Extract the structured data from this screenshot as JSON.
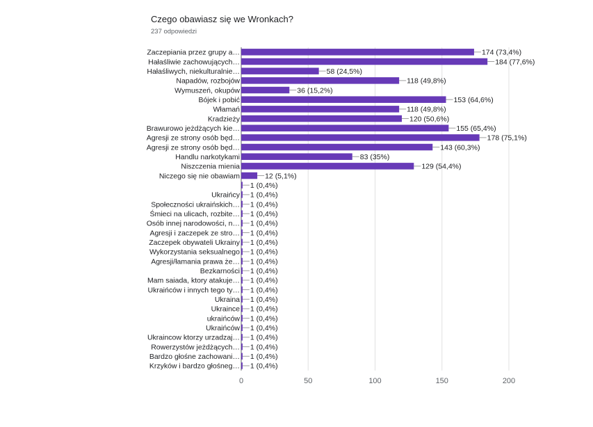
{
  "chart_data": {
    "type": "bar",
    "orientation": "horizontal",
    "title": "Czego obawiasz się we Wronkach?",
    "subtitle": "237 odpowiedzi",
    "bar_color": "#673ab7",
    "xlim": [
      0,
      200
    ],
    "xticks": [
      0,
      50,
      100,
      150,
      200
    ],
    "grid": true,
    "categories": [
      "Zaczepiania przez grupy a…",
      "Hałaśliwie zachowujących…",
      "Hałaśliwych, niekulturalnie…",
      "Napadów, rozbojów",
      "Wymuszeń, okupów",
      "Bójek i pobić",
      "Włamań",
      "Kradzieży",
      "Brawurowo jeżdżących kie…",
      "Agresji ze strony osób będ…",
      "Agresji ze strony osób będ…",
      "Handlu narkotykami",
      "Niszczenia mienia",
      "Niczego się nie obawiam",
      "",
      "Ukraińcy",
      "Społeczności ukraińskich…",
      "Śmieci na ulicach, rozbite…",
      "Osób innej narodowości, n…",
      "Agresji i zaczepek ze stro…",
      "Zaczepek obywateli Ukrainy",
      "Wykorzystania seksualnego",
      "Agresji/łamania prawa że…",
      "Bezkarności",
      "Mam saiada, ktory atakuje…",
      "Ukraińców i innych tego ty…",
      "Ukraina",
      "Ukraince",
      "ukraińców",
      "Ukraińców",
      "Ukraincow ktorzy urzadzaj…",
      "Rowerzystów jeżdżących…",
      "Bardzo głośne zachowani…",
      "Krzyków i bardzo głośneg…"
    ],
    "values": [
      174,
      184,
      58,
      118,
      36,
      153,
      118,
      120,
      155,
      178,
      143,
      83,
      129,
      12,
      1,
      1,
      1,
      1,
      1,
      1,
      1,
      1,
      1,
      1,
      1,
      1,
      1,
      1,
      1,
      1,
      1,
      1,
      1,
      1
    ],
    "value_labels": [
      "174 (73,4%)",
      "184 (77,6%)",
      "58 (24,5%)",
      "118 (49,8%)",
      "36 (15,2%)",
      "153 (64,6%)",
      "118 (49,8%)",
      "120 (50,6%)",
      "155 (65,4%)",
      "178 (75,1%)",
      "143 (60,3%)",
      "83 (35%)",
      "129 (54,4%)",
      "12 (5,1%)",
      "1 (0,4%)",
      "1 (0,4%)",
      "1 (0,4%)",
      "1 (0,4%)",
      "1 (0,4%)",
      "1 (0,4%)",
      "1 (0,4%)",
      "1 (0,4%)",
      "1 (0,4%)",
      "1 (0,4%)",
      "1 (0,4%)",
      "1 (0,4%)",
      "1 (0,4%)",
      "1 (0,4%)",
      "1 (0,4%)",
      "1 (0,4%)",
      "1 (0,4%)",
      "1 (0,4%)",
      "1 (0,4%)",
      "1 (0,4%)"
    ]
  }
}
